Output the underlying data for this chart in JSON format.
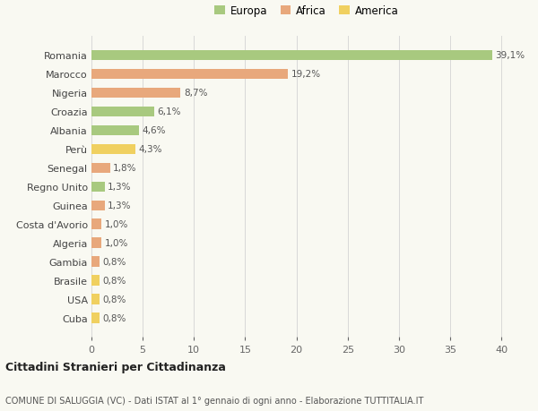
{
  "categories": [
    "Romania",
    "Marocco",
    "Nigeria",
    "Croazia",
    "Albania",
    "Perù",
    "Senegal",
    "Regno Unito",
    "Guinea",
    "Costa d'Avorio",
    "Algeria",
    "Gambia",
    "Brasile",
    "USA",
    "Cuba"
  ],
  "values": [
    39.1,
    19.2,
    8.7,
    6.1,
    4.6,
    4.3,
    1.8,
    1.3,
    1.3,
    1.0,
    1.0,
    0.8,
    0.8,
    0.8,
    0.8
  ],
  "labels": [
    "39,1%",
    "19,2%",
    "8,7%",
    "6,1%",
    "4,6%",
    "4,3%",
    "1,8%",
    "1,3%",
    "1,3%",
    "1,0%",
    "1,0%",
    "0,8%",
    "0,8%",
    "0,8%",
    "0,8%"
  ],
  "colors": [
    "#a8c97f",
    "#e8a87c",
    "#e8a87c",
    "#a8c97f",
    "#a8c97f",
    "#f0d060",
    "#e8a87c",
    "#a8c97f",
    "#e8a87c",
    "#e8a87c",
    "#e8a87c",
    "#e8a87c",
    "#f0d060",
    "#f0d060",
    "#f0d060"
  ],
  "legend": [
    {
      "label": "Europa",
      "color": "#a8c97f"
    },
    {
      "label": "Africa",
      "color": "#e8a87c"
    },
    {
      "label": "America",
      "color": "#f0d060"
    }
  ],
  "title": "Cittadini Stranieri per Cittadinanza",
  "subtitle": "COMUNE DI SALUGGIA (VC) - Dati ISTAT al 1° gennaio di ogni anno - Elaborazione TUTTITALIA.IT",
  "xlim": [
    0,
    42
  ],
  "background_color": "#f9f9f2",
  "grid_color": "#d8d8d8",
  "xticks": [
    0,
    5,
    10,
    15,
    20,
    25,
    30,
    35,
    40
  ]
}
